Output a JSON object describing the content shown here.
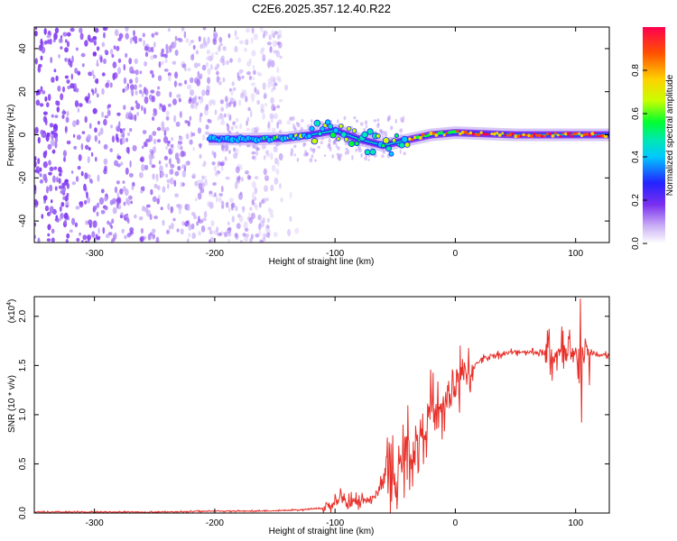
{
  "title": "C2E6.2025.357.12.40.R22",
  "chart_data": [
    {
      "type": "heatmap",
      "name": "spectrogram",
      "xlabel": "Height of straight line (km)",
      "ylabel": "Frequency (Hz)",
      "xlim": [
        -350,
        128
      ],
      "ylim": [
        -50,
        50
      ],
      "xticks": [
        -300,
        -200,
        -100,
        0,
        100
      ],
      "xtick_labels": [
        "-300",
        "-200",
        "-100",
        "0",
        "100"
      ],
      "yticks": [
        40,
        20,
        0,
        -20,
        -40
      ],
      "ytick_labels": [
        "40",
        "20",
        "0",
        "-20",
        "-40"
      ],
      "colorbar": {
        "label": "Normalized spectral amplitude",
        "range": [
          0,
          1
        ],
        "ticks": [
          0.0,
          0.2,
          0.4,
          0.6,
          0.8
        ],
        "tick_labels": [
          "0.0",
          "0.2",
          "0.4",
          "0.6",
          "0.8"
        ],
        "colors": [
          "#ffffff",
          "#cbb0f5",
          "#7a2ef0",
          "#2323ff",
          "#00c8ff",
          "#00e8b0",
          "#00ff30",
          "#c8ff00",
          "#ffd000",
          "#ff5000",
          "#ff0050"
        ]
      },
      "noise_region_x": [
        -350,
        -145
      ],
      "signal_line": [
        {
          "x": -205,
          "y": -2
        },
        {
          "x": -165,
          "y": -2
        },
        {
          "x": -140,
          "y": -1.5
        },
        {
          "x": -120,
          "y": 0
        },
        {
          "x": -100,
          "y": 2
        },
        {
          "x": -80,
          "y": -2
        },
        {
          "x": -60,
          "y": -5
        },
        {
          "x": -45,
          "y": -3
        },
        {
          "x": -20,
          "y": 0
        },
        {
          "x": 0,
          "y": 1
        },
        {
          "x": 50,
          "y": 0
        },
        {
          "x": 128,
          "y": 0
        }
      ]
    },
    {
      "type": "line",
      "name": "snr",
      "xlabel": "Height of straight line (km)",
      "ylabel": "SNR (10 * v/v)",
      "y_multiplier": "(x10",
      "y_multiplier_exp": "4",
      "y_multiplier_close": ")",
      "xlim": [
        -350,
        128
      ],
      "ylim": [
        0,
        2.2
      ],
      "xticks": [
        -300,
        -200,
        -100,
        0,
        100
      ],
      "xtick_labels": [
        "-300",
        "-200",
        "-100",
        "0",
        "100"
      ],
      "yticks": [
        0,
        0.5,
        1.0,
        1.5,
        2.0
      ],
      "ytick_labels": [
        "0.0",
        "0.5",
        "1.0",
        "1.5",
        "2.0"
      ],
      "color": "#e8302a",
      "series": [
        {
          "name": "SNR",
          "x": [
            -350,
            -300,
            -250,
            -200,
            -160,
            -130,
            -110,
            -100,
            -95,
            -90,
            -85,
            -80,
            -75,
            -70,
            -65,
            -60,
            -57,
            -55,
            -52,
            -50,
            -45,
            -40,
            -35,
            -30,
            -25,
            -20,
            -15,
            -10,
            -5,
            0,
            5,
            10,
            15,
            20,
            25,
            30,
            40,
            50,
            60,
            70,
            80,
            85,
            90,
            95,
            100,
            104,
            110,
            115,
            120,
            128
          ],
          "y": [
            0.01,
            0.01,
            0.01,
            0.02,
            0.02,
            0.03,
            0.05,
            0.1,
            0.15,
            0.08,
            0.12,
            0.1,
            0.15,
            0.12,
            0.2,
            0.35,
            0.5,
            0.3,
            0.45,
            0.25,
            0.5,
            0.7,
            0.55,
            0.8,
            0.9,
            1.05,
            0.95,
            1.1,
            1.2,
            1.3,
            1.35,
            1.45,
            1.48,
            1.55,
            1.58,
            1.6,
            1.62,
            1.64,
            1.64,
            1.63,
            1.62,
            1.58,
            1.6,
            1.55,
            1.6,
            1.6,
            1.62,
            1.62,
            1.6,
            1.6
          ]
        }
      ]
    }
  ]
}
